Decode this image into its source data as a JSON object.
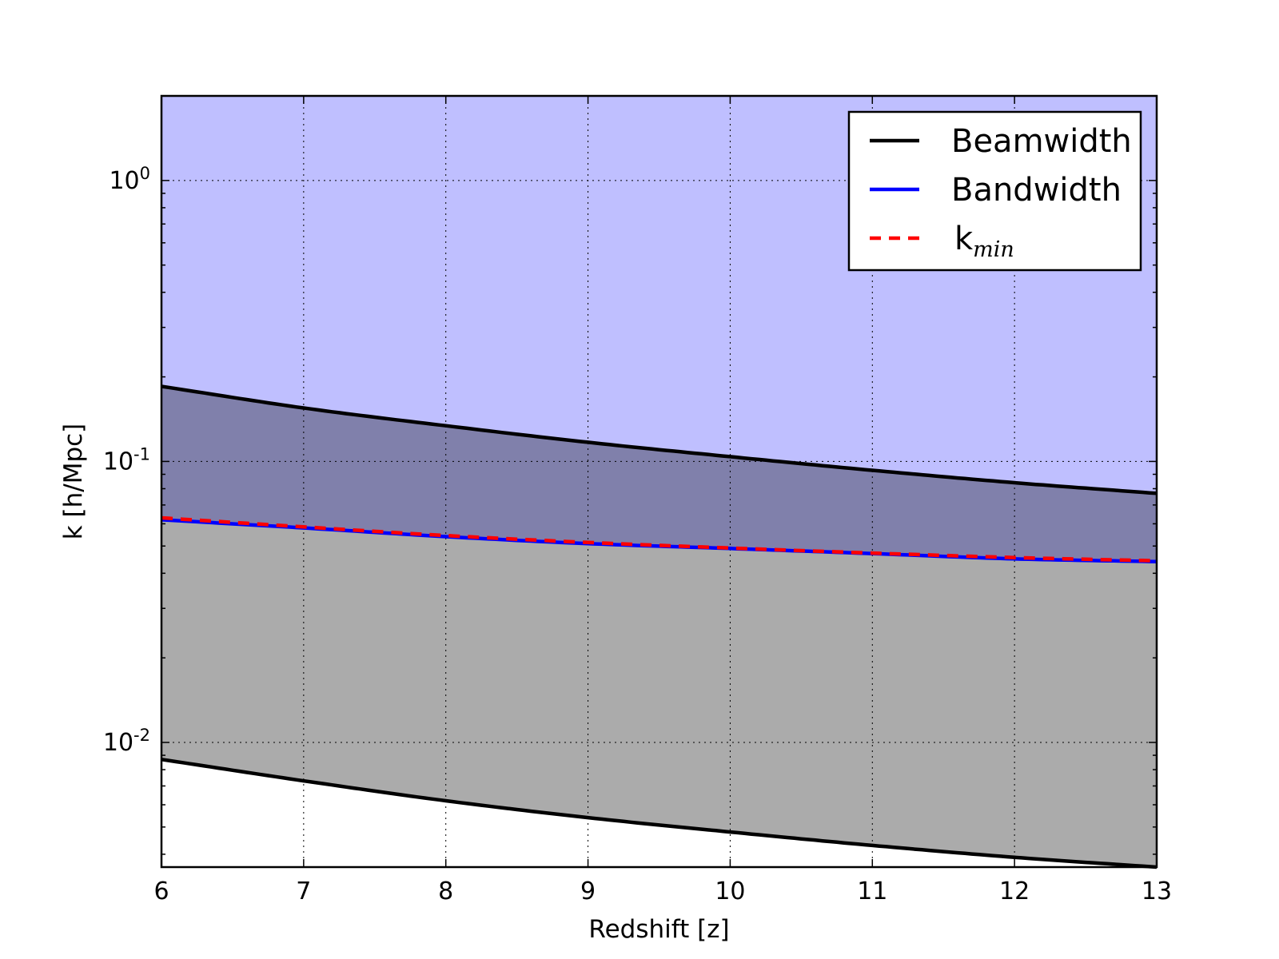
{
  "chart_data": {
    "type": "line",
    "title": "",
    "xlabel": "Redshift [z]",
    "ylabel": "k [h/Mpc]",
    "xlim": [
      6,
      13
    ],
    "ylim": [
      0.0036,
      2.0
    ],
    "yscale": "log",
    "grid": true,
    "legend_position": "top-right",
    "x_ticks": [
      "6",
      "7",
      "8",
      "9",
      "10",
      "11",
      "12",
      "13"
    ],
    "y_ticks": [
      {
        "value": 0.01,
        "base": "10",
        "exp": "-2"
      },
      {
        "value": 0.1,
        "base": "10",
        "exp": "-1"
      },
      {
        "value": 1,
        "base": "10",
        "exp": "0"
      }
    ],
    "x": [
      6,
      7,
      8,
      9,
      10,
      11,
      12,
      13
    ],
    "series": [
      {
        "name": "Beamwidth",
        "color": "#000000",
        "style": "solid",
        "values": [
          0.185,
          0.155,
          0.134,
          0.117,
          0.104,
          0.093,
          0.084,
          0.077
        ],
        "role": "upper"
      },
      {
        "name": "Beamwidth",
        "color": "#000000",
        "style": "solid",
        "values": [
          0.0087,
          0.0073,
          0.0062,
          0.0054,
          0.0048,
          0.0043,
          0.0039,
          0.0036
        ],
        "role": "lower"
      },
      {
        "name": "Bandwidth",
        "color": "#0000ff",
        "style": "solid",
        "values": [
          0.062,
          0.058,
          0.054,
          0.051,
          0.049,
          0.047,
          0.045,
          0.044
        ]
      },
      {
        "name": "k",
        "name_subscript": "min",
        "color": "#ff0000",
        "style": "dashed",
        "values": [
          0.063,
          0.0585,
          0.0545,
          0.0515,
          0.0492,
          0.0472,
          0.0455,
          0.0443
        ]
      }
    ],
    "regions": [
      {
        "between": [
          "Bandwidth",
          "top"
        ],
        "color": "#0000ff",
        "opacity": 0.25
      },
      {
        "between": [
          "Beamwidth lower",
          "Beamwidth upper"
        ],
        "color": "#000000",
        "opacity": 0.33
      }
    ],
    "legend": [
      {
        "label": "Beamwidth",
        "sub": "",
        "color": "#000000",
        "style": "solid"
      },
      {
        "label": "Bandwidth",
        "sub": "",
        "color": "#0000ff",
        "style": "solid"
      },
      {
        "label": "k",
        "sub": "min",
        "color": "#ff0000",
        "style": "dashed"
      }
    ]
  }
}
